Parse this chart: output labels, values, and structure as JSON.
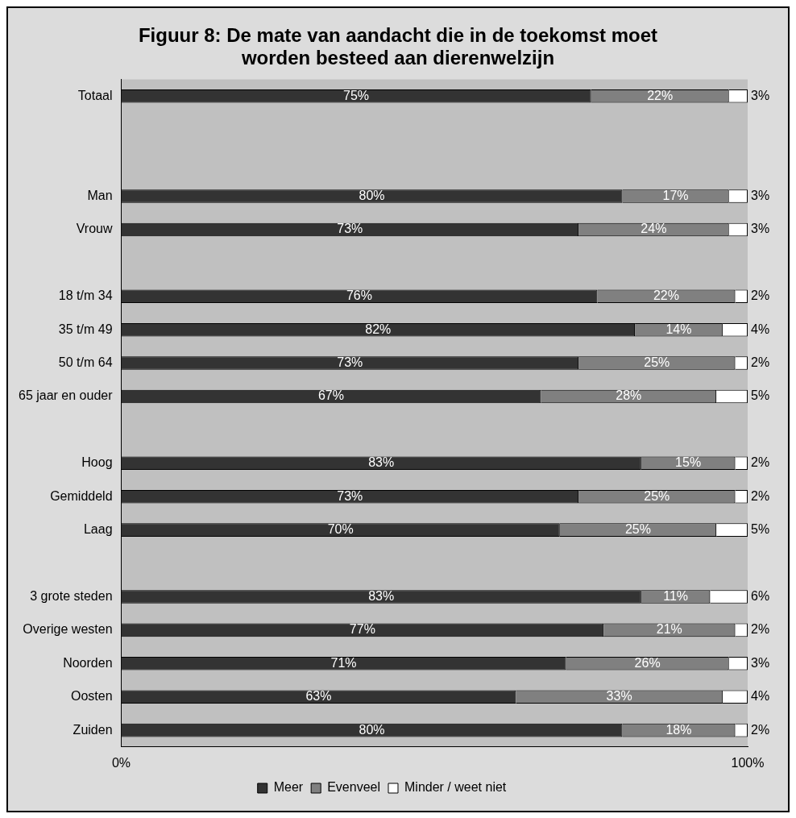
{
  "chart_data": {
    "type": "bar",
    "orientation": "horizontal",
    "stacked": true,
    "title": "Figuur 8: De mate van aandacht die in de toekomst moet worden besteed aan dierenwelzijn",
    "categories": [
      "Totaal",
      null,
      null,
      "Man",
      "Vrouw",
      null,
      "18 t/m 34",
      "35 t/m 49",
      "50 t/m 64",
      "65 jaar en ouder",
      null,
      "Hoog",
      "Gemiddeld",
      "Laag",
      null,
      "3 grote steden",
      "Overige westen",
      "Noorden",
      "Oosten",
      "Zuiden"
    ],
    "series": [
      {
        "name": "Meer",
        "color": "#333333",
        "values": [
          75,
          null,
          null,
          80,
          73,
          null,
          76,
          82,
          73,
          67,
          null,
          83,
          73,
          70,
          null,
          83,
          77,
          71,
          63,
          80
        ],
        "value_labels": [
          "75%",
          null,
          null,
          "80%",
          "73%",
          null,
          "76%",
          "82%",
          "73%",
          "67%",
          null,
          "83%",
          "73%",
          "70%",
          null,
          "83%",
          "77%",
          "71%",
          "63%",
          "80%"
        ]
      },
      {
        "name": "Evenveel",
        "color": "#808080",
        "values": [
          22,
          null,
          null,
          17,
          24,
          null,
          22,
          14,
          25,
          28,
          null,
          15,
          25,
          25,
          null,
          11,
          21,
          26,
          33,
          18
        ],
        "value_labels": [
          "22%",
          null,
          null,
          "17%",
          "24%",
          null,
          "22%",
          "14%",
          "25%",
          "28%",
          null,
          "15%",
          "25%",
          "25%",
          null,
          "11%",
          "21%",
          "26%",
          "33%",
          "18%"
        ]
      },
      {
        "name": "Minder / weet niet",
        "color": "#ffffff",
        "values": [
          3,
          null,
          null,
          3,
          3,
          null,
          2,
          4,
          2,
          5,
          null,
          2,
          2,
          5,
          null,
          6,
          2,
          3,
          4,
          2
        ],
        "value_labels": [
          "3%",
          null,
          null,
          "3%",
          "3%",
          null,
          "2%",
          "4%",
          "2%",
          "5%",
          null,
          "2%",
          "2%",
          "5%",
          null,
          "6%",
          "2%",
          "3%",
          "4%",
          "2%"
        ]
      }
    ],
    "xlim": [
      0,
      100
    ],
    "xticks": [
      {
        "value": 0,
        "label": "0%"
      },
      {
        "value": 100,
        "label": "100%"
      }
    ],
    "grid": false,
    "legend": "bottom"
  }
}
